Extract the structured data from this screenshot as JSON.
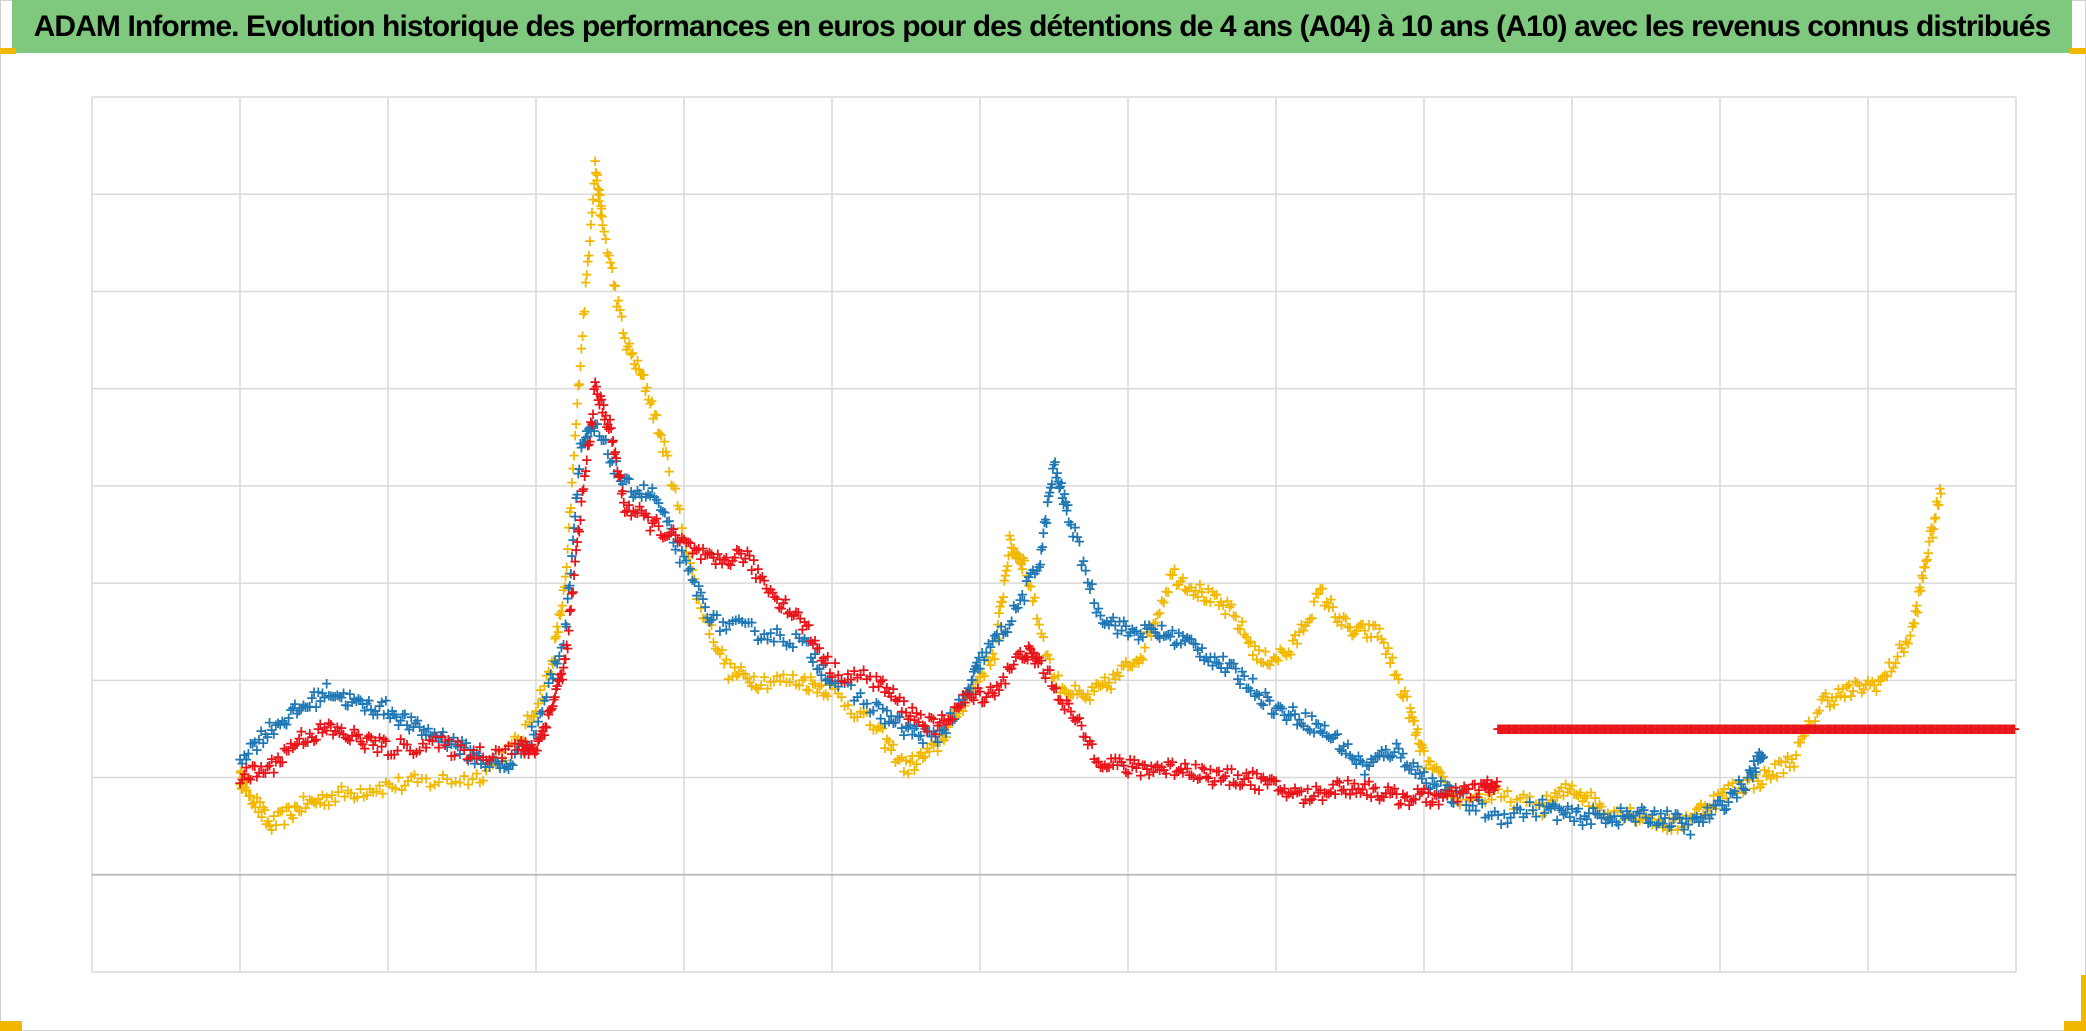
{
  "title": "ADAM Informe. Evolution historique des performances en euros pour des détentions de 4 ans (A04) à 10 ans (A10) avec les revenus connus distribués",
  "colors": {
    "title_bg": "#7fc97f",
    "grid": "#d9d9d9",
    "corner": "#f2b800"
  },
  "chart_data": {
    "type": "scatter",
    "marker": "+",
    "title": "ADAM Informe. Evolution historique des performances en euros pour des détentions de 4 ans (A04) à 10 ans (A10) avec les revenus connus distribués",
    "xlabel": "",
    "ylabel": "",
    "xlim": [
      0,
      13
    ],
    "ylim": [
      -1,
      8
    ],
    "grid": true,
    "x_gridlines": 13,
    "y_gridlines": [
      0,
      1,
      2,
      3,
      4,
      5,
      6,
      7,
      8,
      9
    ],
    "series": [
      {
        "color": "#f2b800",
        "points": [
          [
            1,
            1.0
          ],
          [
            1.05,
            0.9
          ],
          [
            1.2,
            0.5
          ],
          [
            1.4,
            0.7
          ],
          [
            1.6,
            0.8
          ],
          [
            1.9,
            0.9
          ],
          [
            2.2,
            0.95
          ],
          [
            2.6,
            1.0
          ],
          [
            2.9,
            1.4
          ],
          [
            3.1,
            2.1
          ],
          [
            3.2,
            3.0
          ],
          [
            3.3,
            5.3
          ],
          [
            3.4,
            7.3
          ],
          [
            3.45,
            6.7
          ],
          [
            3.6,
            5.5
          ],
          [
            3.75,
            5.0
          ],
          [
            3.9,
            4.2
          ],
          [
            4.1,
            2.8
          ],
          [
            4.3,
            2.1
          ],
          [
            4.5,
            2.0
          ],
          [
            4.8,
            2.0
          ],
          [
            5.0,
            1.9
          ],
          [
            5.3,
            1.5
          ],
          [
            5.5,
            1.1
          ],
          [
            5.7,
            1.3
          ],
          [
            5.9,
            1.8
          ],
          [
            6.1,
            2.3
          ],
          [
            6.2,
            3.4
          ],
          [
            6.3,
            3.2
          ],
          [
            6.5,
            2.0
          ],
          [
            6.7,
            1.8
          ],
          [
            6.9,
            2.0
          ],
          [
            7.1,
            2.3
          ],
          [
            7.3,
            3.1
          ],
          [
            7.5,
            2.9
          ],
          [
            7.7,
            2.7
          ],
          [
            7.9,
            2.2
          ],
          [
            8.1,
            2.3
          ],
          [
            8.3,
            2.9
          ],
          [
            8.5,
            2.5
          ],
          [
            8.7,
            2.5
          ],
          [
            8.9,
            1.7
          ],
          [
            9.0,
            1.2
          ],
          [
            9.2,
            0.8
          ],
          [
            9.5,
            0.8
          ],
          [
            9.8,
            0.7
          ],
          [
            10.0,
            0.9
          ],
          [
            10.2,
            0.7
          ],
          [
            10.5,
            0.6
          ],
          [
            10.7,
            0.5
          ],
          [
            10.9,
            0.7
          ],
          [
            11.1,
            0.9
          ],
          [
            11.3,
            1.0
          ],
          [
            11.5,
            1.2
          ],
          [
            11.7,
            1.8
          ],
          [
            11.9,
            1.9
          ],
          [
            12.1,
            2.0
          ],
          [
            12.3,
            2.5
          ],
          [
            12.4,
            3.3
          ],
          [
            12.5,
            4.0
          ]
        ]
      },
      {
        "color": "#1f77b4",
        "points": [
          [
            1,
            1.2
          ],
          [
            1.2,
            1.5
          ],
          [
            1.4,
            1.7
          ],
          [
            1.6,
            1.9
          ],
          [
            1.8,
            1.75
          ],
          [
            2.0,
            1.7
          ],
          [
            2.2,
            1.5
          ],
          [
            2.4,
            1.4
          ],
          [
            2.6,
            1.2
          ],
          [
            2.8,
            1.1
          ],
          [
            3.0,
            1.5
          ],
          [
            3.2,
            2.5
          ],
          [
            3.3,
            4.4
          ],
          [
            3.4,
            4.6
          ],
          [
            3.6,
            4.0
          ],
          [
            3.8,
            3.9
          ],
          [
            4.0,
            3.2
          ],
          [
            4.2,
            2.6
          ],
          [
            4.5,
            2.5
          ],
          [
            4.8,
            2.4
          ],
          [
            5.0,
            2.0
          ],
          [
            5.3,
            1.7
          ],
          [
            5.5,
            1.5
          ],
          [
            5.7,
            1.4
          ],
          [
            5.9,
            1.8
          ],
          [
            6.0,
            2.2
          ],
          [
            6.2,
            2.6
          ],
          [
            6.4,
            3.2
          ],
          [
            6.5,
            4.2
          ],
          [
            6.6,
            3.7
          ],
          [
            6.8,
            2.7
          ],
          [
            7.0,
            2.5
          ],
          [
            7.2,
            2.5
          ],
          [
            7.4,
            2.4
          ],
          [
            7.6,
            2.2
          ],
          [
            7.8,
            2.0
          ],
          [
            8.0,
            1.7
          ],
          [
            8.2,
            1.6
          ],
          [
            8.4,
            1.4
          ],
          [
            8.6,
            1.1
          ],
          [
            8.8,
            1.3
          ],
          [
            9.0,
            1.0
          ],
          [
            9.2,
            0.8
          ],
          [
            9.5,
            0.6
          ],
          [
            9.8,
            0.7
          ],
          [
            10.0,
            0.6
          ],
          [
            10.2,
            0.6
          ],
          [
            10.4,
            0.6
          ],
          [
            10.6,
            0.6
          ],
          [
            10.8,
            0.5
          ],
          [
            11.0,
            0.7
          ],
          [
            11.2,
            1.0
          ],
          [
            11.3,
            1.3
          ]
        ]
      },
      {
        "color": "#e8141a",
        "points": [
          [
            1,
            1.0
          ],
          [
            1.2,
            1.1
          ],
          [
            1.4,
            1.4
          ],
          [
            1.6,
            1.5
          ],
          [
            1.8,
            1.4
          ],
          [
            2.0,
            1.3
          ],
          [
            2.3,
            1.35
          ],
          [
            2.6,
            1.25
          ],
          [
            2.9,
            1.3
          ],
          [
            3.0,
            1.3
          ],
          [
            3.1,
            1.7
          ],
          [
            3.2,
            2.2
          ],
          [
            3.3,
            3.7
          ],
          [
            3.4,
            5.0
          ],
          [
            3.5,
            4.6
          ],
          [
            3.6,
            3.8
          ],
          [
            3.8,
            3.6
          ],
          [
            4.0,
            3.4
          ],
          [
            4.2,
            3.2
          ],
          [
            4.4,
            3.3
          ],
          [
            4.6,
            2.9
          ],
          [
            4.8,
            2.6
          ],
          [
            5.0,
            2.1
          ],
          [
            5.3,
            2.0
          ],
          [
            5.5,
            1.7
          ],
          [
            5.7,
            1.5
          ],
          [
            5.9,
            1.8
          ],
          [
            6.1,
            1.9
          ],
          [
            6.3,
            2.3
          ],
          [
            6.4,
            2.2
          ],
          [
            6.6,
            1.7
          ],
          [
            6.8,
            1.2
          ],
          [
            7.0,
            1.1
          ],
          [
            7.2,
            1.1
          ],
          [
            7.4,
            1.1
          ],
          [
            7.6,
            1.0
          ],
          [
            7.8,
            1.0
          ],
          [
            8.0,
            0.9
          ],
          [
            8.2,
            0.8
          ],
          [
            8.4,
            0.9
          ],
          [
            8.6,
            0.9
          ],
          [
            8.8,
            0.8
          ],
          [
            9.0,
            0.8
          ],
          [
            9.2,
            0.8
          ],
          [
            9.4,
            0.9
          ],
          [
            9.5,
            0.9
          ]
        ]
      },
      {
        "color": "#e8141a",
        "style": "flat-line",
        "points": [
          [
            9.5,
            1.5
          ],
          [
            13.0,
            1.5
          ]
        ]
      }
    ]
  }
}
